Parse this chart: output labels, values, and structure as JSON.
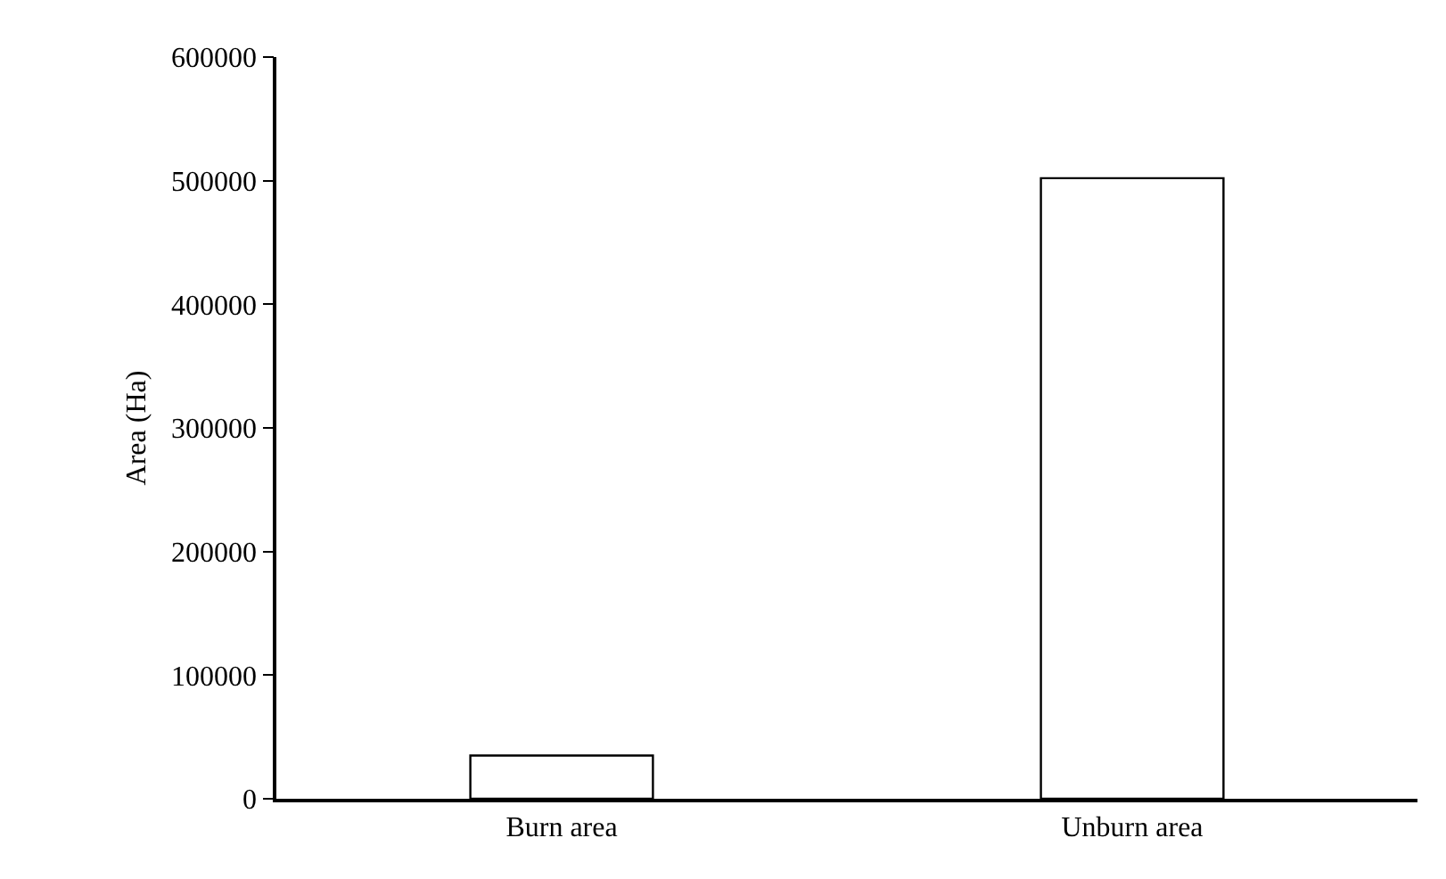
{
  "chart_data": {
    "type": "bar",
    "ylabel": "Area (Ha)",
    "categories": [
      "Burn area",
      "Unburn area"
    ],
    "values": [
      35000,
      502000
    ],
    "color": "#ffffff",
    "ylim": [
      0,
      600000
    ],
    "yticks": [
      0,
      100000,
      200000,
      300000,
      400000,
      500000,
      600000
    ],
    "grid": false
  }
}
